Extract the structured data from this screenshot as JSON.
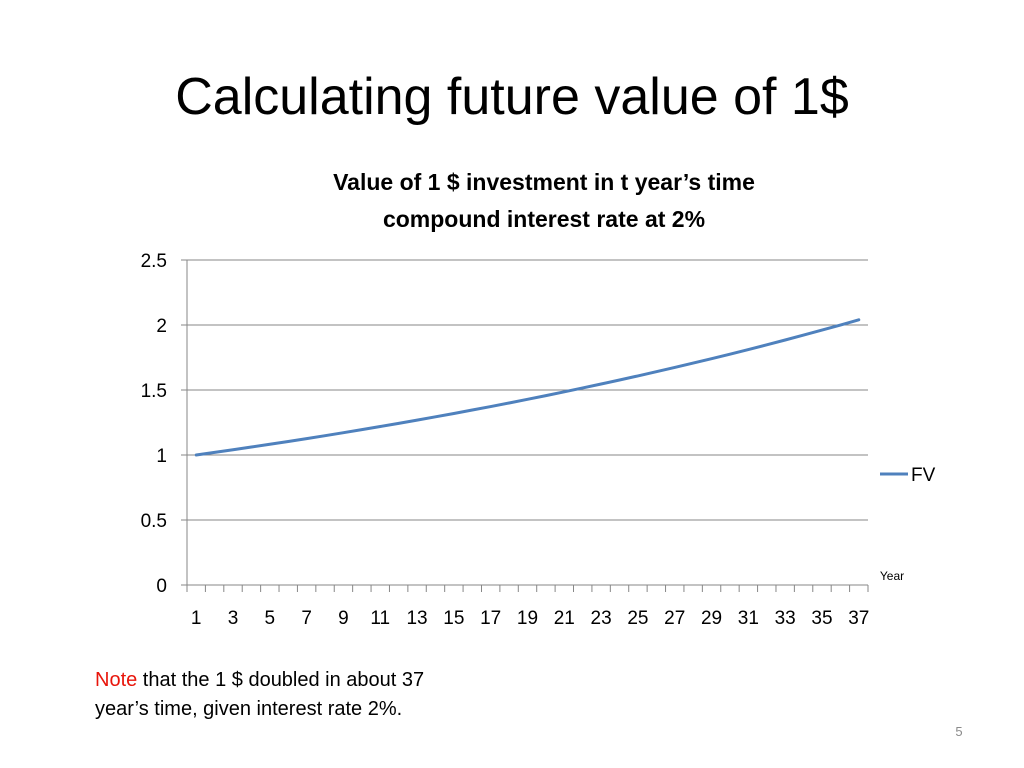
{
  "slide": {
    "title": "Calculating future value of 1$",
    "page_number": "5"
  },
  "note": {
    "keyword": "Note",
    "text": " that the 1 $ doubled in about 37 year’s time, given interest rate 2%."
  },
  "colors": {
    "series": "#4f81bd",
    "note_keyword": "#e8150b",
    "gridline": "#878787",
    "axis": "#878787"
  },
  "chart_data": {
    "type": "line",
    "title_lines": [
      "Value of 1 $ investment in t year’s time",
      "compound interest rate at 2%"
    ],
    "xlabel": "Year",
    "ylabel": "",
    "x": [
      1,
      2,
      3,
      4,
      5,
      6,
      7,
      8,
      9,
      10,
      11,
      12,
      13,
      14,
      15,
      16,
      17,
      18,
      19,
      20,
      21,
      22,
      23,
      24,
      25,
      26,
      27,
      28,
      29,
      30,
      31,
      32,
      33,
      34,
      35,
      36,
      37
    ],
    "x_tick_labels": [
      "1",
      "3",
      "5",
      "7",
      "9",
      "11",
      "13",
      "15",
      "17",
      "19",
      "21",
      "23",
      "25",
      "27",
      "29",
      "31",
      "33",
      "35",
      "37"
    ],
    "y_ticks": [
      "0",
      "0.5",
      "1",
      "1.5",
      "2",
      "2.5"
    ],
    "ylim": [
      0,
      2.5
    ],
    "grid": true,
    "legend_position": "right",
    "series": [
      {
        "name": "FV",
        "values": [
          1.0,
          1.02,
          1.0404,
          1.0612,
          1.0824,
          1.1041,
          1.1262,
          1.1487,
          1.1717,
          1.1951,
          1.219,
          1.2434,
          1.2682,
          1.2936,
          1.3195,
          1.3459,
          1.3728,
          1.4002,
          1.4282,
          1.4568,
          1.4859,
          1.5157,
          1.546,
          1.5769,
          1.6084,
          1.6406,
          1.6734,
          1.7069,
          1.741,
          1.7758,
          1.8114,
          1.8476,
          1.8845,
          1.9222,
          1.9607,
          1.9999,
          2.0399
        ]
      }
    ]
  }
}
